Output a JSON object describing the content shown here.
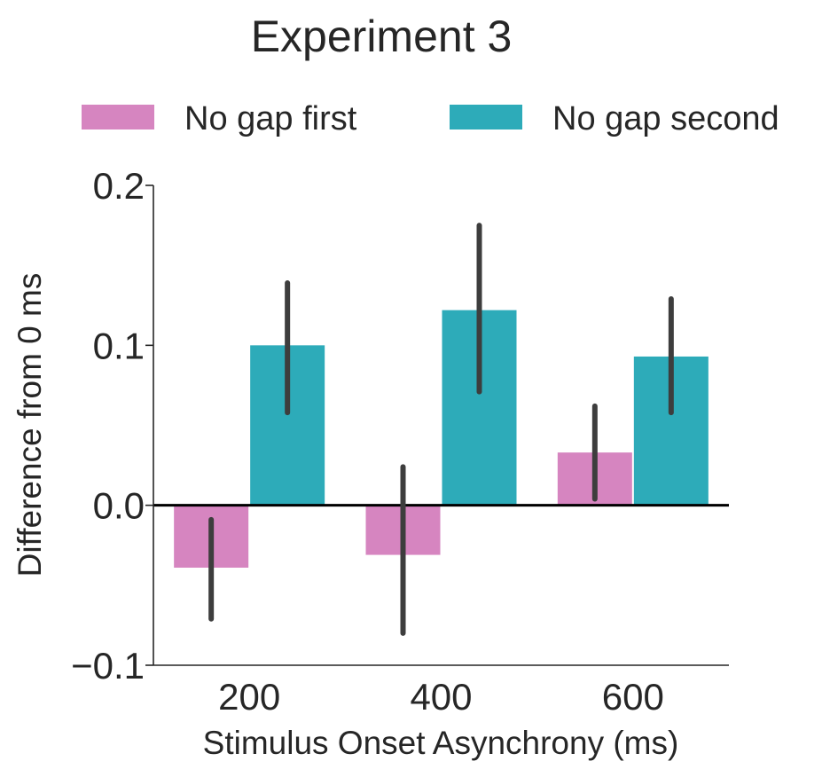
{
  "chart_data": {
    "type": "bar",
    "title": "Experiment 3",
    "xlabel": "Stimulus Onset Asynchrony (ms)",
    "ylabel": "Difference from 0 ms",
    "categories": [
      "200",
      "400",
      "600"
    ],
    "series": [
      {
        "name": "No gap first",
        "color": "#d685c0",
        "values": [
          -0.039,
          -0.031,
          0.033
        ],
        "ci_low": [
          -0.071,
          -0.08,
          0.004
        ],
        "ci_high": [
          -0.009,
          0.024,
          0.062
        ]
      },
      {
        "name": "No gap second",
        "color": "#2dabb9",
        "values": [
          0.1,
          0.122,
          0.093
        ],
        "ci_low": [
          0.058,
          0.071,
          0.058
        ],
        "ci_high": [
          0.139,
          0.175,
          0.129
        ]
      }
    ],
    "ylim": [
      -0.1,
      0.2
    ],
    "yticks": [
      -0.1,
      0.0,
      0.1,
      0.2
    ],
    "ytick_labels": [
      "−0.1",
      "0.0",
      "0.1",
      "0.2"
    ],
    "reference_line": 0.0,
    "grid": false,
    "legend_position": "top"
  }
}
